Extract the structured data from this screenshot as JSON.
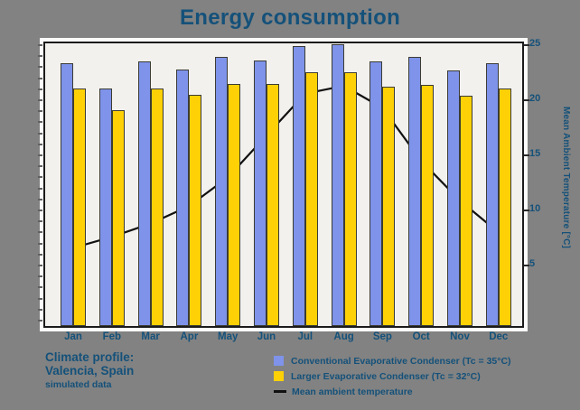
{
  "title": "Energy consumption",
  "colors": {
    "background": "#828282",
    "panel": "#fbfbf9",
    "plot_background": "#f2f1ee",
    "frame": "#1b1b1b",
    "conventional_blue": "#7e93e9",
    "larger_yellow": "#fdd106",
    "line_black": "#111111",
    "text_blue": "#14517a"
  },
  "chart_data": {
    "type": "bar",
    "title": "Energy consumption",
    "categories": [
      "Jan",
      "Feb",
      "Mar",
      "Apr",
      "May",
      "Jun",
      "Jul",
      "Aug",
      "Sep",
      "Oct",
      "Nov",
      "Dec"
    ],
    "series": [
      {
        "name": "Conventional Evaporative Condenser (Tc = 35°C)",
        "type": "bar",
        "color": "#7e93e9",
        "values": [
          23.4,
          21.1,
          23.5,
          22.8,
          23.9,
          23.6,
          24.9,
          25.1,
          23.5,
          23.9,
          22.7,
          23.4
        ]
      },
      {
        "name": "Larger Evaporative Condenser (Tc = 32°C)",
        "type": "bar",
        "color": "#fdd106",
        "values": [
          21.1,
          19.1,
          21.1,
          20.5,
          21.5,
          21.5,
          22.5,
          22.5,
          21.2,
          21.4,
          20.4,
          21.1
        ]
      },
      {
        "name": "Mean ambient temperature",
        "type": "line",
        "color": "#111111",
        "axis": "right",
        "values": [
          6.6,
          7.6,
          8.8,
          10.4,
          13.0,
          16.8,
          20.6,
          21.3,
          19.3,
          14.5,
          10.9,
          8.0
        ]
      }
    ],
    "right_axis": {
      "label": "Mean Ambient Temperature [°C]",
      "ticks": [
        5,
        10,
        15,
        20,
        25
      ],
      "range": [
        0,
        26
      ]
    },
    "left_axis": {
      "label": "",
      "ticks": [],
      "minor_ticks": true
    },
    "legend_position": "bottom-right",
    "grid": false
  },
  "annotation": {
    "lines": [
      "Climate profile:",
      "Valencia, Spain",
      "simulated data"
    ]
  }
}
